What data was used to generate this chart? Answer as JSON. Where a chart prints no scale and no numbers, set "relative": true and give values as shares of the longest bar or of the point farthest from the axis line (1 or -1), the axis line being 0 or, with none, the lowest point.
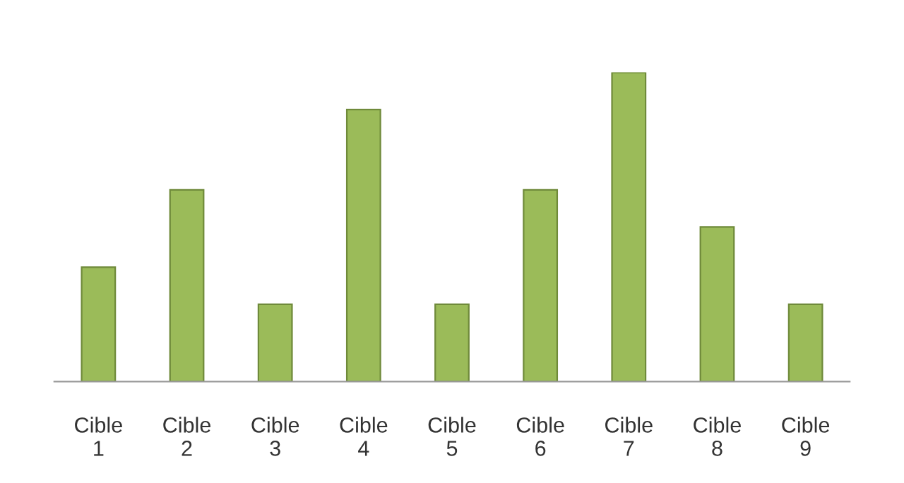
{
  "chart_data": {
    "type": "bar",
    "relative": true,
    "categories": [
      "Cible 1",
      "Cible 2",
      "Cible 3",
      "Cible 4",
      "Cible 5",
      "Cible 6",
      "Cible 7",
      "Cible 8",
      "Cible 9"
    ],
    "values": [
      0.37,
      0.62,
      0.25,
      0.88,
      0.25,
      0.62,
      1,
      0.5,
      0.25
    ],
    "color": "#9bbb59",
    "grid": false,
    "legend": false
  }
}
